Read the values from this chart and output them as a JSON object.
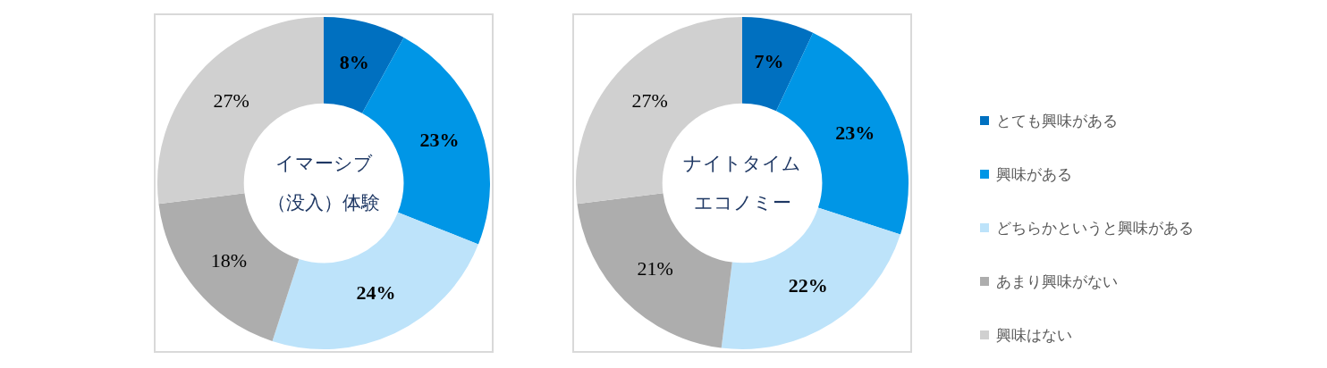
{
  "chart_data": [
    {
      "type": "donut",
      "title": "イマーシブ（没入）体験",
      "categories": [
        "とても興味がある",
        "興味がある",
        "どちらかというと興味がある",
        "あまり興味がない",
        "興味はない"
      ],
      "values": [
        8,
        23,
        24,
        18,
        27
      ],
      "value_labels": [
        "8%",
        "23%",
        "24%",
        "18%",
        "27%"
      ],
      "colors": [
        "#0070c0",
        "#0096e6",
        "#bde3fa",
        "#adadad",
        "#d0d0d0"
      ],
      "legend": "right"
    },
    {
      "type": "donut",
      "title": "ナイトタイムエコノミー",
      "categories": [
        null,
        null,
        null,
        null,
        null
      ],
      "values": [
        7,
        23,
        22,
        21,
        27
      ],
      "value_labels": [
        "7%",
        "23%",
        "22%",
        "21%",
        "27%"
      ],
      "colors": [
        "#0070c0",
        "#0096e6",
        "#bde3fa",
        "#adadad",
        "#d0d0d0"
      ]
    }
  ]
}
